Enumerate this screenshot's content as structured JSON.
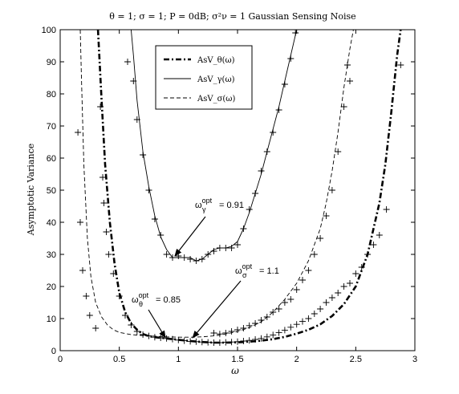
{
  "chart_data": {
    "type": "line",
    "title": "θ = 1; σ = 1; P = 0dB; σ²ν = 1 Gaussian Sensing Noise",
    "xlabel": "ω",
    "ylabel": "Asymptotic Variance",
    "xlim": [
      0,
      3
    ],
    "ylim": [
      0,
      100
    ],
    "xticks": [
      0,
      0.5,
      1,
      1.5,
      2,
      2.5,
      3
    ],
    "yticks": [
      0,
      10,
      20,
      30,
      40,
      50,
      60,
      70,
      80,
      90,
      100
    ],
    "grid": false,
    "legend_position": "top-left-inside",
    "series": [
      {
        "name": "AsV_θ(ω)",
        "style": "dash-dot-thick",
        "x": [
          0.32,
          0.35,
          0.38,
          0.42,
          0.46,
          0.5,
          0.55,
          0.6,
          0.65,
          0.7,
          0.75,
          0.8,
          0.85,
          0.9,
          0.95,
          1.0,
          1.1,
          1.2,
          1.3,
          1.4,
          1.5,
          1.6,
          1.7,
          1.8,
          1.9,
          2.0,
          2.1,
          2.2,
          2.3,
          2.4,
          2.5,
          2.6,
          2.7,
          2.75,
          2.8,
          2.85,
          2.88
        ],
        "y": [
          100,
          78,
          58,
          40,
          27,
          18,
          12,
          8.5,
          6.5,
          5.2,
          4.5,
          4.2,
          4.0,
          3.8,
          3.6,
          3.4,
          3.0,
          2.7,
          2.5,
          2.5,
          2.6,
          2.8,
          3.1,
          3.6,
          4.3,
          5.3,
          6.5,
          8.2,
          10.8,
          14.5,
          20,
          30,
          46,
          58,
          74,
          92,
          100
        ]
      },
      {
        "name": "AsV_γ(ω)",
        "style": "solid-thin",
        "x": [
          0.6,
          0.62,
          0.65,
          0.7,
          0.75,
          0.8,
          0.85,
          0.9,
          0.95,
          1.0,
          1.05,
          1.1,
          1.15,
          1.2,
          1.25,
          1.3,
          1.35,
          1.4,
          1.45,
          1.5,
          1.55,
          1.6,
          1.65,
          1.7,
          1.75,
          1.8,
          1.85,
          1.9,
          1.95,
          2.0
        ],
        "y": [
          100,
          92,
          78,
          62,
          51,
          42,
          35.5,
          31.5,
          29,
          29,
          29,
          29,
          28,
          28.5,
          30,
          31.5,
          32,
          32,
          32.5,
          34,
          38,
          43,
          49,
          55,
          62,
          69,
          76,
          84,
          92,
          100
        ]
      },
      {
        "name": "AsV_σ(ω)",
        "style": "dashed-thin",
        "x": [
          0.17,
          0.18,
          0.2,
          0.23,
          0.26,
          0.3,
          0.35,
          0.4,
          0.45,
          0.5,
          0.6,
          0.7,
          0.8,
          0.9,
          1.0,
          1.1,
          1.2,
          1.3,
          1.4,
          1.5,
          1.6,
          1.7,
          1.8,
          1.9,
          2.0,
          2.1,
          2.2,
          2.25,
          2.3,
          2.35,
          2.4,
          2.45,
          2.48
        ],
        "y": [
          100,
          85,
          58,
          35,
          23,
          15,
          10.5,
          8,
          6.5,
          5.7,
          5.0,
          4.7,
          4.5,
          4.3,
          4.2,
          4.2,
          4.3,
          4.6,
          5.2,
          6.0,
          7.2,
          9.0,
          12,
          16,
          21,
          28,
          38,
          46,
          56,
          68,
          82,
          94,
          100
        ]
      }
    ],
    "markers": [
      {
        "x": [
          0.15,
          0.17,
          0.19,
          0.22,
          0.25,
          0.3,
          0.34,
          0.36,
          0.37,
          0.39,
          0.41,
          0.45,
          0.5,
          0.55,
          0.6,
          0.65,
          0.7,
          0.75,
          0.8,
          0.85,
          0.9,
          0.95,
          1.0,
          1.05,
          1.1,
          1.15,
          1.2,
          1.25,
          1.3,
          1.35,
          1.4,
          1.45,
          1.5,
          1.55,
          1.6,
          1.65,
          1.7,
          1.75,
          1.8,
          1.85,
          1.9,
          1.95,
          2.0,
          2.05,
          2.1,
          2.15,
          2.2,
          2.25,
          2.3,
          2.35,
          2.4,
          2.45,
          2.5,
          2.55,
          2.6,
          2.65,
          2.7,
          2.76,
          2.88
        ],
        "y": [
          68,
          40,
          25,
          17,
          11,
          7,
          76,
          54,
          46,
          37,
          30,
          24,
          17,
          11,
          8,
          6,
          5,
          4.6,
          4.2,
          4,
          3.8,
          3.6,
          3.3,
          3.1,
          2.9,
          2.8,
          2.7,
          2.6,
          2.5,
          2.5,
          2.6,
          2.7,
          2.8,
          3,
          3.2,
          3.5,
          3.8,
          4.3,
          4.9,
          5.6,
          6.4,
          7.3,
          8.2,
          9.1,
          10,
          11.5,
          13,
          15,
          16.5,
          18,
          20,
          21,
          24,
          26,
          30,
          33,
          36,
          44,
          89
        ]
      },
      {
        "x": [
          0.57,
          0.62,
          0.65,
          0.7,
          0.75,
          0.8,
          0.85,
          0.9,
          0.95,
          1.0,
          1.05,
          1.1,
          1.15,
          1.2,
          1.25,
          1.3,
          1.35,
          1.4,
          1.45,
          1.5,
          1.55,
          1.6,
          1.65,
          1.7,
          1.75,
          1.8,
          1.85,
          1.9,
          1.95,
          1.99
        ],
        "y": [
          90,
          84,
          72,
          61,
          50,
          41,
          36,
          30,
          29,
          29.5,
          29,
          28.5,
          28,
          28.5,
          30,
          31,
          32,
          32,
          32,
          33,
          38,
          44,
          49,
          56,
          62,
          68,
          75,
          83,
          91,
          99
        ]
      },
      {
        "x": [
          1.3,
          1.35,
          1.4,
          1.45,
          1.5,
          1.55,
          1.6,
          1.65,
          1.7,
          1.75,
          1.8,
          1.85,
          1.9,
          1.95,
          2.0,
          2.05,
          2.1,
          2.15,
          2.2,
          2.25,
          2.3,
          2.35,
          2.4,
          2.43,
          2.45
        ],
        "y": [
          5.5,
          5.2,
          5.5,
          6,
          6.5,
          7,
          7.8,
          8.5,
          9.5,
          10.5,
          12,
          13,
          15,
          16,
          19,
          22,
          25,
          30,
          35,
          42,
          50,
          62,
          76,
          89,
          84
        ]
      }
    ],
    "annotations": [
      {
        "label": "ω",
        "sub": "γ",
        "sup": "opt",
        "value": "= 0.91",
        "target_x": 0.97,
        "target_y": 29.5
      },
      {
        "label": "ω",
        "sub": "σ",
        "sup": "opt",
        "value": "= 1.1",
        "target_x": 1.12,
        "target_y": 4.0
      },
      {
        "label": "ω",
        "sub": "θ",
        "sup": "opt",
        "value": "= 0.85",
        "target_x": 0.89,
        "target_y": 4.0
      }
    ]
  }
}
